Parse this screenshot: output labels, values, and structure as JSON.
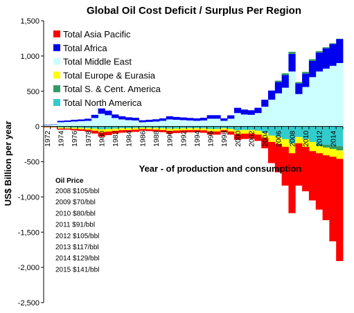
{
  "chart_data": {
    "type": "area",
    "stacked": true,
    "title": "Global Oil Cost Deficit / Surplus Per Region",
    "xlabel": "Year - of production and consumption",
    "ylabel": "US$ Billion per year",
    "ylim": [
      -2500,
      1500
    ],
    "yticks": [
      {
        "value": 1500,
        "label": "1,500"
      },
      {
        "value": 1000,
        "label": "1,000"
      },
      {
        "value": 500,
        "label": "500"
      },
      {
        "value": 0,
        "label": "0"
      },
      {
        "value": -500,
        "label": "-500"
      },
      {
        "value": -1000,
        "label": "-1,000"
      },
      {
        "value": -1500,
        "label": "-1,500"
      },
      {
        "value": -2000,
        "label": "-2,000"
      },
      {
        "value": -2500,
        "label": "-2,500"
      }
    ],
    "x": [
      1972,
      1973,
      1974,
      1975,
      1976,
      1977,
      1978,
      1979,
      1980,
      1981,
      1982,
      1983,
      1984,
      1985,
      1986,
      1987,
      1988,
      1989,
      1990,
      1991,
      1992,
      1993,
      1994,
      1995,
      1996,
      1997,
      1998,
      1999,
      2000,
      2001,
      2002,
      2003,
      2004,
      2005,
      2006,
      2007,
      2008,
      2009,
      2010,
      2011,
      2012,
      2013,
      2014,
      2015
    ],
    "xtick_labels": [
      "1972",
      "1974",
      "1976",
      "1978",
      "1980",
      "1982",
      "1984",
      "1986",
      "1988",
      "1990",
      "1992",
      "1994",
      "1996",
      "1998",
      "2000",
      "2002",
      "2004",
      "2006",
      "2008",
      "2010",
      "2012",
      "2014"
    ],
    "legend_position": "top-left",
    "grid": false,
    "positive_series": [
      {
        "name": "Total Middle East",
        "color": "#ccffff",
        "values": [
          20,
          25,
          60,
          65,
          70,
          75,
          80,
          120,
          180,
          160,
          120,
          100,
          90,
          85,
          60,
          65,
          70,
          80,
          100,
          95,
          90,
          85,
          80,
          85,
          110,
          110,
          80,
          110,
          190,
          170,
          165,
          190,
          280,
          380,
          470,
          550,
          780,
          460,
          560,
          700,
          780,
          820,
          860,
          900
        ]
      },
      {
        "name": "Total Africa",
        "color": "#0000ee",
        "values": [
          5,
          5,
          20,
          20,
          25,
          25,
          30,
          45,
          75,
          65,
          50,
          45,
          40,
          38,
          28,
          30,
          32,
          35,
          45,
          40,
          38,
          36,
          35,
          38,
          50,
          50,
          35,
          48,
          75,
          70,
          65,
          75,
          100,
          130,
          160,
          180,
          250,
          150,
          190,
          230,
          270,
          290,
          310,
          340
        ]
      },
      {
        "name": "Total S. & Cent. America",
        "color": "#339966",
        "values": [
          0,
          0,
          0,
          0,
          0,
          0,
          0,
          0,
          0,
          0,
          0,
          0,
          0,
          0,
          0,
          0,
          0,
          0,
          0,
          0,
          0,
          0,
          0,
          0,
          0,
          0,
          0,
          0,
          0,
          0,
          0,
          0,
          0,
          0,
          20,
          25,
          30,
          20,
          25,
          25,
          20,
          15,
          10,
          5
        ]
      }
    ],
    "negative_series": [
      {
        "name": "Total North America",
        "color": "#33cccc",
        "values": [
          -5,
          -5,
          -15,
          -15,
          -18,
          -20,
          -25,
          -30,
          -40,
          -35,
          -30,
          -25,
          -25,
          -22,
          -18,
          -20,
          -22,
          -25,
          -30,
          -28,
          -26,
          -25,
          -25,
          -27,
          -35,
          -35,
          -25,
          -35,
          -55,
          -50,
          -50,
          -60,
          -90,
          -130,
          -150,
          -180,
          -240,
          -150,
          -180,
          -220,
          -250,
          -260,
          -270,
          -280
        ]
      },
      {
        "name": "Total S. & Cent. America",
        "color": "#339966",
        "values": [
          0,
          0,
          0,
          0,
          0,
          0,
          0,
          0,
          0,
          0,
          0,
          0,
          0,
          0,
          0,
          0,
          0,
          0,
          0,
          0,
          0,
          0,
          0,
          0,
          0,
          0,
          0,
          0,
          0,
          0,
          0,
          0,
          0,
          0,
          0,
          0,
          0,
          0,
          0,
          0,
          -30,
          -40,
          -50,
          -60
        ]
      },
      {
        "name": "Total Europe & Eurasia",
        "color": "#ffff00",
        "values": [
          -5,
          -5,
          -15,
          -15,
          -18,
          -20,
          -22,
          -30,
          -45,
          -38,
          -32,
          -28,
          -26,
          -25,
          -20,
          -22,
          -24,
          -26,
          -32,
          -30,
          -28,
          -27,
          -26,
          -28,
          -36,
          -36,
          -26,
          -36,
          -55,
          -52,
          -50,
          -55,
          -70,
          -90,
          -100,
          -110,
          -140,
          -90,
          -110,
          -130,
          -100,
          -110,
          -110,
          -120
        ]
      },
      {
        "name": "Total Asia Pacific",
        "color": "#ff0000",
        "values": [
          -5,
          -5,
          -15,
          -15,
          -20,
          -22,
          -25,
          -40,
          -60,
          -50,
          -40,
          -35,
          -32,
          -30,
          -22,
          -24,
          -26,
          -30,
          -40,
          -36,
          -34,
          -32,
          -32,
          -34,
          -45,
          -45,
          -32,
          -45,
          -80,
          -75,
          -75,
          -90,
          -150,
          -300,
          -400,
          -550,
          -850,
          -600,
          -630,
          -700,
          -800,
          -920,
          -1200,
          -1450
        ]
      }
    ],
    "legend": [
      {
        "name": "Total Asia Pacific",
        "color": "#ff0000"
      },
      {
        "name": "Total Africa",
        "color": "#0000ee"
      },
      {
        "name": "Total Middle East",
        "color": "#ccffff"
      },
      {
        "name": "Total Europe & Eurasia",
        "color": "#ffff00"
      },
      {
        "name": "Total S. & Cent. America",
        "color": "#339966"
      },
      {
        "name": "Total North America",
        "color": "#33cccc"
      }
    ],
    "annotation": {
      "title": "Oil Price",
      "lines": [
        "2008  $105/bbl",
        "2009  $70/bbl",
        "2010  $80/bbl",
        "2011  $91/bbl",
        "2012  $105/bbl",
        "2013  $117/bbl",
        "2014  $129/bbl",
        "2015  $141/bbl"
      ]
    }
  }
}
